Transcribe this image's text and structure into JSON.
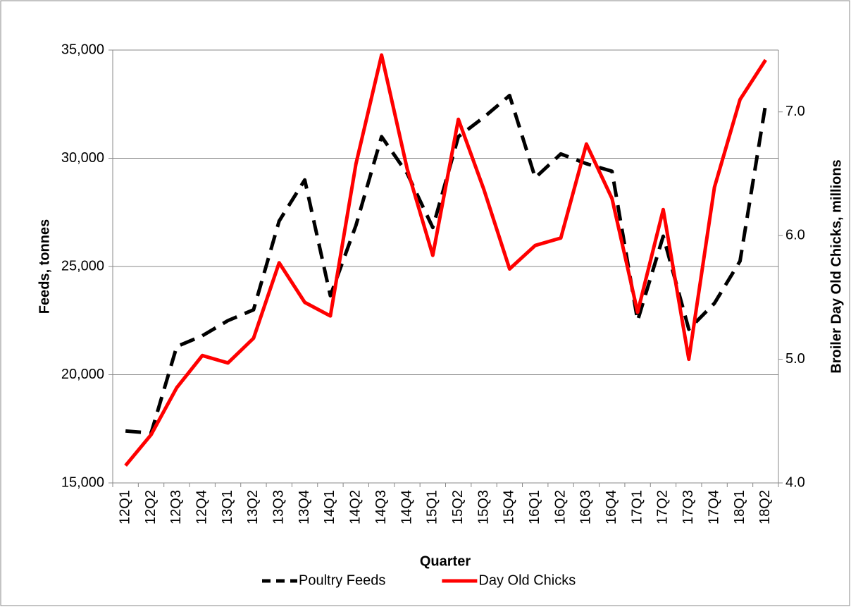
{
  "chart_data": {
    "type": "line",
    "xlabel": "Quarter",
    "ylabel": "Feeds, tonnes",
    "y2label": "Broiler Day Old Chicks, millions",
    "categories": [
      "12Q1",
      "12Q2",
      "12Q3",
      "12Q4",
      "13Q1",
      "13Q2",
      "13Q3",
      "13Q4",
      "14Q1",
      "14Q2",
      "14Q3",
      "14Q4",
      "15Q1",
      "15Q2",
      "15Q3",
      "15Q4",
      "16Q1",
      "16Q2",
      "16Q3",
      "16Q4",
      "17Q1",
      "17Q2",
      "17Q3",
      "17Q4",
      "18Q1",
      "18Q2"
    ],
    "series": [
      {
        "name": "Poultry Feeds",
        "color": "#000000",
        "dashed": true,
        "values": [
          17400,
          17300,
          21300,
          21800,
          22500,
          23000,
          27100,
          29000,
          23650,
          26900,
          31000,
          29300,
          26800,
          31000,
          31900,
          32900,
          29100,
          30200,
          29750,
          29400,
          22500,
          26400,
          22100,
          23300,
          25250,
          32500
        ]
      },
      {
        "name": "Day Old Chicks",
        "color": "#ff0000",
        "axis": "y2",
        "values": [
          4.14,
          4.39,
          4.77,
          5.03,
          4.97,
          5.17,
          5.78,
          5.46,
          5.35,
          6.58,
          7.46,
          6.54,
          5.84,
          6.94,
          6.37,
          5.73,
          5.92,
          5.98,
          6.74,
          6.3,
          5.38,
          6.21,
          5.0,
          6.39,
          7.1,
          7.42
        ]
      }
    ],
    "ylim": [
      15000,
      35000
    ],
    "yticks": [
      {
        "value": 15000,
        "label": "15,000"
      },
      {
        "value": 20000,
        "label": "20,000"
      },
      {
        "value": 25000,
        "label": "25,000"
      },
      {
        "value": 30000,
        "label": "30,000"
      },
      {
        "value": 35000,
        "label": "35,000"
      }
    ],
    "y2lim": [
      4,
      7.5
    ],
    "y2ticks": [
      {
        "value": 4,
        "label": "4.0"
      },
      {
        "value": 5,
        "label": "5.0"
      },
      {
        "value": 6,
        "label": "6.0"
      },
      {
        "value": 7,
        "label": "7.0"
      }
    ],
    "grid": true,
    "legend": "bottom"
  }
}
